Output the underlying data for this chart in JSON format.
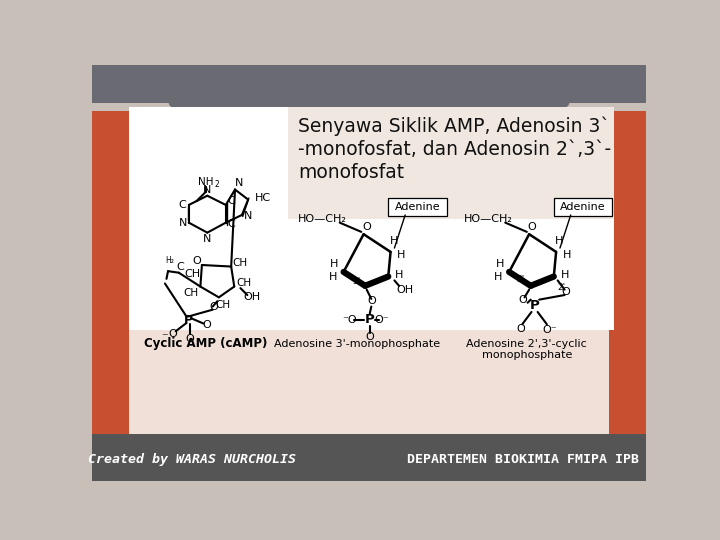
{
  "title_line1": "Senyawa Siklik AMP, Adenosin 3`",
  "title_line2": "-monofosfat, dan Adenosin 2`,3`-",
  "title_line3": "monofosfat",
  "footer_left": "Created by WARAS NURCHOLIS",
  "footer_right": "DEPARTEMEN BIOKIMIA FMIPA IPB",
  "slide_bg": "#c8c0b8",
  "content_white": "#ffffff",
  "title_bg": "#f0e8e0",
  "lower_bg": "#f0e0d8",
  "top_bar_color": "#6a6a72",
  "footer_bar_color": "#555555",
  "left_accent": "#c85030",
  "right_accent": "#c85030",
  "text_dark": "#111111",
  "text_footer": "#ffffff",
  "font_title": "DejaVu Sans",
  "font_footer": "monospace"
}
